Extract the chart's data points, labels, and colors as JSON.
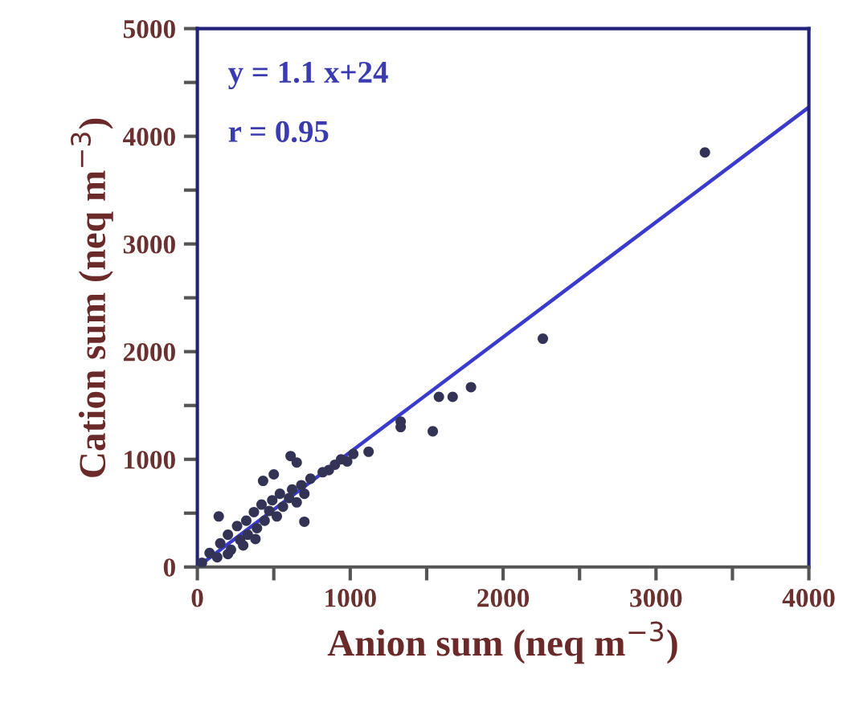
{
  "chart_data": {
    "type": "scatter",
    "xlabel": "Anion sum (neq m$^{−3}$)",
    "ylabel": "Cation sum (neq m$^{−3}$)",
    "annotations": [
      "y = 1.1 x+24",
      "r = 0.95"
    ],
    "xlim": [
      0,
      4000
    ],
    "ylim": [
      0,
      5000
    ],
    "xticks": [
      0,
      {
        "value": 500,
        "label": null
      },
      1000,
      {
        "value": 1500,
        "label": null
      },
      2000,
      {
        "value": 2500,
        "label": null
      },
      3000,
      {
        "value": 3500,
        "label": null
      },
      4000
    ],
    "yticks": [
      0,
      {
        "value": 500,
        "label": null
      },
      1000,
      {
        "value": 1500,
        "label": null
      },
      2000,
      {
        "value": 2500,
        "label": null
      },
      3000,
      {
        "value": 3500,
        "label": null
      },
      4000,
      {
        "value": 4500,
        "label": null
      },
      5000
    ],
    "grid": false,
    "legend": false,
    "marker": "circle",
    "series": [
      {
        "color": "#333355",
        "x": [
          30,
          80,
          130,
          150,
          200,
          220,
          260,
          280,
          320,
          330,
          370,
          390,
          420,
          440,
          470,
          490,
          520,
          540,
          560,
          600,
          620,
          650,
          680,
          700,
          740,
          300,
          200,
          380,
          820,
          860,
          900,
          940,
          980,
          1020,
          1120,
          1330,
          1330,
          1540,
          1580,
          1670,
          1790,
          2260,
          3320,
          610,
          650,
          430,
          500,
          140,
          700
        ],
        "values": [
          40,
          130,
          90,
          220,
          300,
          160,
          380,
          250,
          430,
          300,
          510,
          360,
          580,
          430,
          520,
          620,
          470,
          680,
          560,
          640,
          720,
          600,
          760,
          680,
          820,
          200,
          120,
          260,
          880,
          900,
          950,
          1000,
          980,
          1050,
          1070,
          1350,
          1300,
          1260,
          1580,
          1580,
          1670,
          2120,
          3850,
          1030,
          970,
          800,
          860,
          470,
          420
        ]
      },
      {
        "type": "line",
        "color": "#3a3acc",
        "marker": "none",
        "line_style": "solid",
        "x": [
          0,
          4000
        ],
        "values": [
          0,
          4270
        ]
      }
    ]
  }
}
